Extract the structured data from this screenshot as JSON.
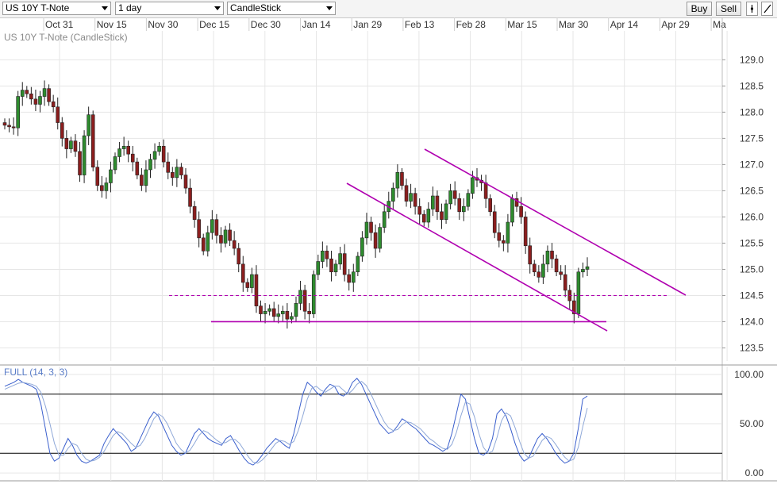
{
  "toolbar": {
    "symbol": "US 10Y T-Note",
    "interval": "1 day",
    "chart_type": "CandleStick",
    "buy_label": "Buy",
    "sell_label": "Sell"
  },
  "chart_data": [
    {
      "type": "candlestick",
      "title": "US 10Y T-Note (CandleStick)",
      "x_ticks": [
        "Oct 31",
        "Nov 15",
        "Nov 30",
        "Dec 15",
        "Dec 30",
        "Jan 14",
        "Jan 29",
        "Feb 13",
        "Feb 28",
        "Mar 15",
        "Mar 30",
        "Apr 14",
        "Apr 29",
        "Ma"
      ],
      "y_ticks": [
        "129.0",
        "128.5",
        "128.0",
        "127.5",
        "127.0",
        "126.5",
        "126.0",
        "125.5",
        "125.0",
        "124.5",
        "124.0",
        "123.5"
      ],
      "ylim": [
        123.25,
        129.55
      ],
      "colors": {
        "up": "#2e8b2e",
        "down": "#8b1e1e",
        "trendline": "#b000b0"
      },
      "closes": [
        127.75,
        127.72,
        127.7,
        128.3,
        128.42,
        128.35,
        128.25,
        128.15,
        128.3,
        128.45,
        128.2,
        128.1,
        127.8,
        127.5,
        127.3,
        127.45,
        127.25,
        126.8,
        127.55,
        127.95,
        126.95,
        126.6,
        126.5,
        126.65,
        126.9,
        127.15,
        127.3,
        127.35,
        127.2,
        127.05,
        126.8,
        126.6,
        126.9,
        127.1,
        127.25,
        127.35,
        127.05,
        126.85,
        126.75,
        126.95,
        126.8,
        126.55,
        126.2,
        125.95,
        125.6,
        125.35,
        125.7,
        125.95,
        125.65,
        125.5,
        125.75,
        125.55,
        125.4,
        125.1,
        124.75,
        124.65,
        124.9,
        124.3,
        124.15,
        124.2,
        124.25,
        124.1,
        124.15,
        124.2,
        124.05,
        124.1,
        124.35,
        124.6,
        124.2,
        124.15,
        124.9,
        125.15,
        125.35,
        125.2,
        124.95,
        125.1,
        125.3,
        124.9,
        124.75,
        124.95,
        125.25,
        125.6,
        125.9,
        125.7,
        125.4,
        125.8,
        126.1,
        126.3,
        126.55,
        126.85,
        126.6,
        126.3,
        126.45,
        126.2,
        126.05,
        125.9,
        126.15,
        126.4,
        126.1,
        125.95,
        126.25,
        126.5,
        126.35,
        126.1,
        126.2,
        126.45,
        126.75,
        126.7,
        126.65,
        126.35,
        126.1,
        125.7,
        125.55,
        125.5,
        125.9,
        126.35,
        126.2,
        126.0,
        125.45,
        125.1,
        124.95,
        124.85,
        125.1,
        125.35,
        125.2,
        124.95,
        124.9,
        124.6,
        124.4,
        124.15,
        124.95,
        125.0,
        125.05
      ],
      "horizontal_lines": [
        {
          "y": 124.0,
          "style": "solid",
          "x_start": "Dec 15",
          "x_end": "Mar 30"
        },
        {
          "y": 124.5,
          "style": "dashed",
          "x_start": "Nov 30",
          "x_end": "Apr 29"
        }
      ],
      "trendlines": [
        {
          "from": [
            "Jan 29",
            126.55
          ],
          "to": [
            "Apr 14",
            123.78
          ]
        },
        {
          "from": [
            "Feb 13",
            127.2
          ],
          "to": [
            "May",
            124.4
          ]
        }
      ]
    },
    {
      "type": "line",
      "title": "FULL (14, 3, 3)",
      "y_ticks": [
        "100.00",
        "50.00",
        "0.00"
      ],
      "ylim": [
        -8,
        108
      ],
      "reference_lines": [
        80,
        20
      ],
      "series": [
        {
          "name": "%K",
          "color": "#3a5fcd",
          "values": [
            88,
            90,
            92,
            95,
            92,
            90,
            88,
            85,
            70,
            45,
            20,
            12,
            15,
            25,
            35,
            28,
            18,
            12,
            10,
            12,
            15,
            18,
            30,
            38,
            45,
            40,
            35,
            30,
            22,
            25,
            35,
            45,
            55,
            62,
            58,
            48,
            38,
            28,
            22,
            18,
            20,
            30,
            40,
            45,
            40,
            35,
            32,
            30,
            28,
            35,
            38,
            30,
            22,
            15,
            10,
            8,
            12,
            18,
            25,
            30,
            35,
            32,
            28,
            25,
            40,
            60,
            80,
            92,
            88,
            82,
            78,
            85,
            90,
            88,
            80,
            78,
            82,
            92,
            96,
            90,
            80,
            70,
            60,
            50,
            45,
            40,
            42,
            48,
            55,
            52,
            48,
            45,
            40,
            35,
            30,
            28,
            25,
            22,
            25,
            40,
            60,
            80,
            75,
            55,
            35,
            20,
            18,
            22,
            35,
            60,
            65,
            58,
            45,
            30,
            18,
            12,
            15,
            25,
            35,
            40,
            35,
            28,
            20,
            14,
            10,
            12,
            20,
            45,
            75,
            78
          ]
        },
        {
          "name": "%D",
          "color": "#8fa8d8",
          "values": [
            85,
            87,
            89,
            91,
            92,
            91,
            90,
            88,
            82,
            68,
            50,
            30,
            18,
            18,
            25,
            30,
            28,
            20,
            14,
            12,
            13,
            16,
            22,
            30,
            38,
            42,
            40,
            35,
            30,
            26,
            28,
            35,
            45,
            55,
            60,
            57,
            50,
            40,
            30,
            24,
            20,
            23,
            30,
            38,
            43,
            41,
            37,
            33,
            30,
            31,
            34,
            34,
            30,
            23,
            16,
            11,
            10,
            13,
            18,
            24,
            30,
            33,
            32,
            29,
            32,
            43,
            58,
            75,
            86,
            88,
            84,
            82,
            85,
            88,
            88,
            84,
            80,
            84,
            90,
            93,
            89,
            81,
            71,
            61,
            52,
            46,
            43,
            44,
            49,
            52,
            51,
            48,
            45,
            40,
            35,
            32,
            28,
            25,
            24,
            29,
            41,
            58,
            72,
            70,
            57,
            40,
            26,
            20,
            22,
            36,
            53,
            61,
            58,
            46,
            32,
            20,
            15,
            17,
            25,
            33,
            37,
            35,
            29,
            22,
            16,
            12,
            14,
            26,
            47,
            66
          ]
        }
      ]
    }
  ]
}
